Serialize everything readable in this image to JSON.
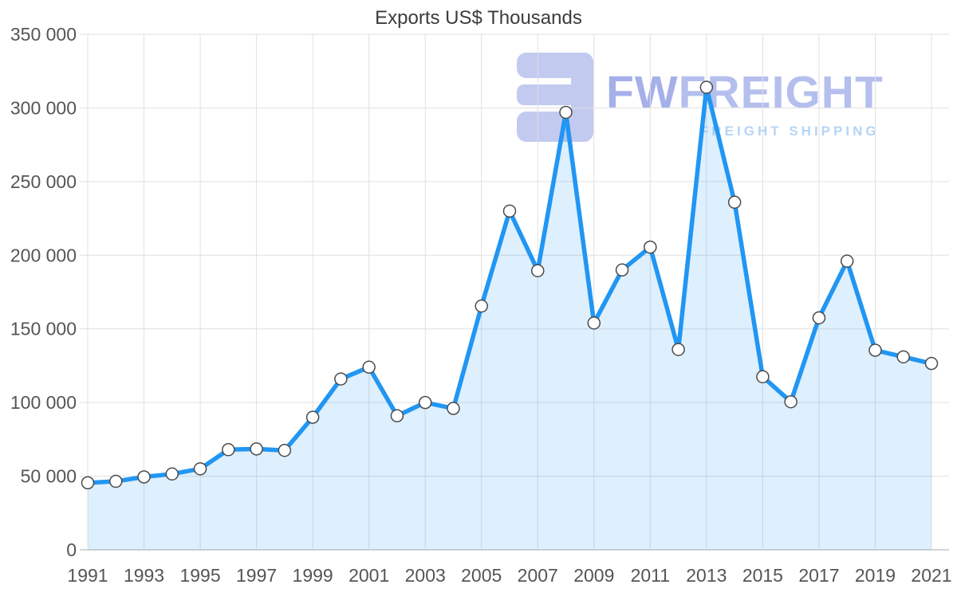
{
  "watermark": {
    "brand_fw": "FW",
    "brand_rest": "FREIGHT",
    "subtitle": "FREIGHT SHIPPING",
    "logo_color": "#b9c1ee",
    "brand_color": "#a4afe9",
    "subtitle_color": "#a9cef2"
  },
  "chart_data": {
    "type": "area",
    "title": "Exports US$ Thousands",
    "xlabel": "",
    "ylabel": "",
    "legend": "none",
    "grid": true,
    "x": [
      1991,
      1992,
      1993,
      1994,
      1995,
      1996,
      1997,
      1998,
      1999,
      2000,
      2001,
      2002,
      2003,
      2004,
      2005,
      2006,
      2007,
      2008,
      2009,
      2010,
      2011,
      2012,
      2013,
      2014,
      2015,
      2016,
      2017,
      2018,
      2019,
      2020,
      2021
    ],
    "values": [
      45500,
      46500,
      49500,
      51500,
      55000,
      68000,
      68500,
      67500,
      90000,
      116000,
      124000,
      91000,
      100000,
      96000,
      165500,
      230000,
      189500,
      297000,
      154000,
      190000,
      205500,
      136000,
      314000,
      236000,
      117500,
      100500,
      157500,
      196000,
      135500,
      131000,
      126500
    ],
    "ylim": [
      0,
      350000
    ],
    "ytick_values": [
      0,
      50000,
      100000,
      150000,
      200000,
      250000,
      300000,
      350000
    ],
    "ytick_labels": [
      "0",
      "50 000",
      "100 000",
      "150 000",
      "200 000",
      "250 000",
      "300 000",
      "350 000"
    ],
    "xtick_labels": [
      "1991",
      "1993",
      "1995",
      "1997",
      "1999",
      "2001",
      "2003",
      "2005",
      "2007",
      "2009",
      "2011",
      "2013",
      "2015",
      "2017",
      "2019",
      "2021"
    ],
    "colors": {
      "line": "#2196f3",
      "fill": "rgba(33,150,243,0.15)",
      "marker_fill": "#ffffff",
      "marker_stroke": "#4a4a4a",
      "grid": "#e0e0e0",
      "axis": "#a8a8a8",
      "text": "#555555",
      "title": "#3c3c3c"
    }
  }
}
